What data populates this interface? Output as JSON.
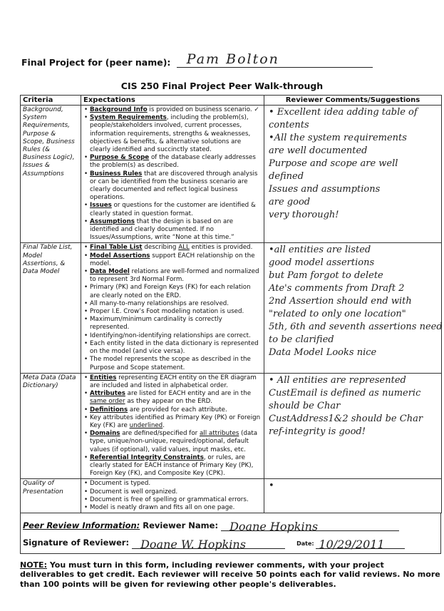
{
  "header": {
    "peer_label": "Final Project for (peer name):",
    "peer_name": "Pam Bolton",
    "title": "CIS 250 Final Project Peer Walk-through"
  },
  "table": {
    "columns": [
      "Criteria",
      "Expectations",
      "Reviewer Comments/Suggestions"
    ],
    "rows": [
      {
        "criteria": "Background, System Requirements, Purpose & Scope, Business Rules (& Business Logic), Issues & Assumptions",
        "expectations": [
          [
            {
              "s": "Background Info",
              "st": "bu"
            },
            " is provided on business scenario. ✓"
          ],
          [
            {
              "s": "System Requirements",
              "st": "bu"
            },
            ", including the problem(s), people/stakeholders involved, current processes, information requirements, strengths & weaknesses, objectives & benefits, & alternative solutions are clearly identified and succinctly stated."
          ],
          [
            {
              "s": "Purpose & Scope",
              "st": "bu"
            },
            " of the database clearly addresses the problem(s) as described."
          ],
          [
            {
              "s": "Business Rules",
              "st": "bu"
            },
            " that are discovered through analysis or can be identified from the business scenario are clearly documented and reflect logical business operations."
          ],
          [
            {
              "s": "Issues",
              "st": "bu"
            },
            " or questions for the customer are identified & clearly stated in question format."
          ],
          [
            {
              "s": "Assumptions",
              "st": "bu"
            },
            " that the design is based on are identified and clearly documented.  If no Issues/Assumptions, write “None at this time.”"
          ]
        ],
        "comments": [
          "• Excellent idea adding table of",
          "contents",
          "•All the system requirements",
          "are well documented",
          "Purpose and scope are well",
          "defined",
          "Issues and assumptions",
          "are good",
          "          very thorough!"
        ]
      },
      {
        "criteria": "Final Table List, Model Assertions, & Data Model",
        "expectations": [
          [
            {
              "s": "Final Table List",
              "st": "bu"
            },
            " describing ",
            {
              "s": "ALL",
              "st": "u"
            },
            " entities is provided."
          ],
          [
            {
              "s": "Model Assertions",
              "st": "bu"
            },
            " support EACH relationship on the model."
          ],
          [
            {
              "s": "Data Model",
              "st": "bu"
            },
            " relations are well-formed and normalized to represent 3rd Normal Form."
          ],
          [
            "Primary (PK) and Foreign Keys (FK) for each relation are clearly noted on the ERD."
          ],
          [
            "All many-to-many relationships are resolved."
          ],
          [
            "Proper I.E. Crow’s Foot modeling notation is used."
          ],
          [
            "Maximum/minimum cardinality is correctly represented."
          ],
          [
            "Identifying/non-identifying relationships are correct."
          ],
          [
            "Each entity listed in the data dictionary is represented on the model (and vice versa)."
          ],
          [
            "The model represents the scope as described in the Purpose and Scope statement."
          ]
        ],
        "comments": [
          "•all entities are listed",
          "good model assertions",
          "but Pam forgot to delete",
          "Ate's comments from Draft 2",
          "2nd Assertion should end with",
          "\"related to only one location\"",
          "5th, 6th and seventh assertions need",
          "to be clarified",
          "Data Model Looks nice"
        ]
      },
      {
        "criteria": "Meta Data (Data Dictionary)",
        "expectations": [
          [
            {
              "s": "Entities",
              "st": "bu"
            },
            " representing EACH entity on the ER diagram are included and listed in alphabetical order."
          ],
          [
            {
              "s": "Attributes",
              "st": "bu"
            },
            " are listed for EACH entity and are in the ",
            {
              "s": "same order",
              "st": "u"
            },
            " as they appear on the ERD."
          ],
          [
            {
              "s": "Definitions",
              "st": "bu"
            },
            " are provided for each attribute."
          ],
          [
            "Key attributes identified as Primary Key (PK) or Foreign Key (FK) are ",
            {
              "s": "underlined",
              "st": "u"
            },
            "."
          ],
          [
            {
              "s": "Domains",
              "st": "bu"
            },
            " are defined/specified for ",
            {
              "s": "all attributes",
              "st": "u"
            },
            " (data type, unique/non-unique, required/optional, default values (if optional), valid values, input masks, etc."
          ],
          [
            {
              "s": "Referential Integrity Constraints",
              "st": "bu"
            },
            ", or rules, are clearly stated for EACH instance of Primary Key (PK), Foreign Key (FK), and Composite Key (CPK)."
          ]
        ],
        "comments": [
          "• All entities are represented",
          "CustEmail is defined as numeric",
          "should be Char",
          "CustAddress1&2 should be Char",
          "ref-integrity is good!"
        ]
      },
      {
        "criteria": "Quality of Presentation",
        "expectations": [
          [
            "Document is typed."
          ],
          [
            "Document is well organized."
          ],
          [
            "Document is free of spelling or grammatical errors."
          ],
          [
            "Model is neatly drawn and fits all on one page."
          ]
        ],
        "comments": [
          "•"
        ]
      }
    ]
  },
  "review": {
    "info_label": "Peer Review Information:",
    "name_label": "Reviewer Name:",
    "name_value": "Doane Hopkins",
    "signature_label": "Signature of Reviewer:",
    "signature_value": "Doane W. Hopkins",
    "date_label": "Date:",
    "date_value": "10/29/2011"
  },
  "note": {
    "label": "NOTE:",
    "text": "  You must turn in this form, including reviewer comments, with your project deliverables to get credit.  Each reviewer will receive 50 points each for valid reviews.  No more than 100 points will be given for reviewing other people's deliverables."
  }
}
